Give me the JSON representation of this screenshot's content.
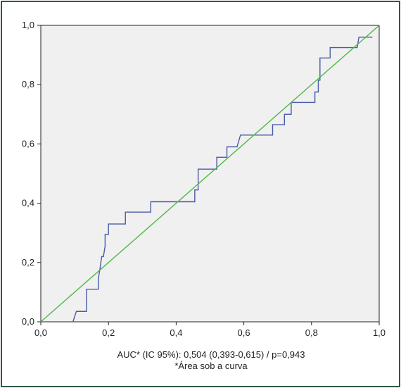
{
  "chart_data": {
    "type": "line",
    "title": "",
    "xlabel": "",
    "ylabel": "",
    "xlim": [
      0,
      1
    ],
    "ylim": [
      0,
      1
    ],
    "x_ticks": [
      "0,0",
      "0,2",
      "0,4",
      "0,6",
      "0,8",
      "1,0"
    ],
    "y_ticks": [
      "0,0",
      "0,2",
      "0,4",
      "0,6",
      "0,8",
      "1,0"
    ],
    "grid": false,
    "colors": {
      "roc": "#4a5aa8",
      "reference": "#4fb848",
      "plot_bg": "#f0f0f0",
      "frame": "#2f5a45"
    },
    "series": [
      {
        "x": [
          0.095,
          0.105,
          0.105,
          0.135,
          0.135,
          0.17,
          0.17,
          0.175,
          0.18,
          0.185,
          0.19,
          0.19,
          0.2,
          0.2,
          0.25,
          0.25,
          0.325,
          0.325,
          0.455,
          0.455,
          0.465,
          0.465,
          0.52,
          0.52,
          0.55,
          0.55,
          0.58,
          0.58,
          0.59,
          0.59,
          0.685,
          0.685,
          0.72,
          0.72,
          0.74,
          0.74,
          0.81,
          0.81,
          0.82,
          0.82,
          0.825,
          0.825,
          0.855,
          0.855,
          0.935,
          0.935,
          0.94,
          0.94,
          0.98,
          0.98
        ],
        "y": [
          0.0,
          0.035,
          0.035,
          0.035,
          0.11,
          0.11,
          0.145,
          0.18,
          0.22,
          0.22,
          0.255,
          0.295,
          0.295,
          0.33,
          0.33,
          0.37,
          0.37,
          0.405,
          0.405,
          0.445,
          0.445,
          0.515,
          0.515,
          0.555,
          0.555,
          0.59,
          0.59,
          0.59,
          0.63,
          0.63,
          0.63,
          0.665,
          0.665,
          0.7,
          0.7,
          0.74,
          0.74,
          0.775,
          0.775,
          0.815,
          0.815,
          0.89,
          0.89,
          0.925,
          0.925,
          0.925,
          0.96,
          0.96,
          0.96,
          0.96
        ]
      },
      {
        "x": [
          0,
          1
        ],
        "y": [
          0,
          1
        ]
      }
    ]
  },
  "caption": {
    "line1": "AUC* (IC 95%): 0,504 (0,393-0,615) / p=0,943",
    "line2": "*Área sob a curva"
  }
}
